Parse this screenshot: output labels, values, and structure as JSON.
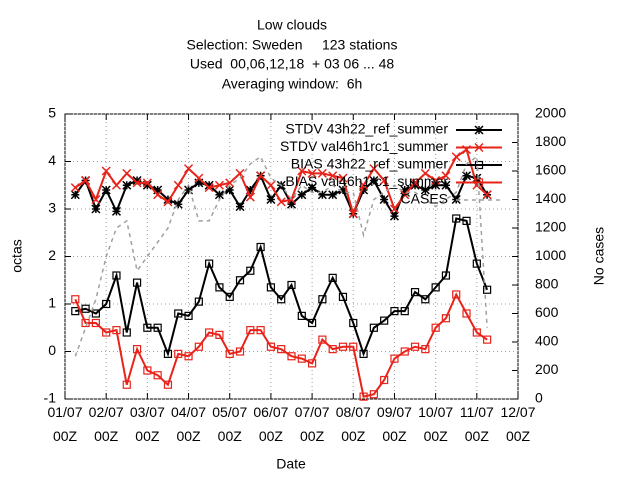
{
  "chart_data": {
    "type": "line",
    "title": [
      "Low clouds",
      "Selection: Sweden     123 stations",
      "Used  00,06,12,18  + 03 06 ... 48",
      "Averaging window:  6h"
    ],
    "xlabel": "Date",
    "ylabel": "octas",
    "y2label": "No cases",
    "x": [
      6,
      12,
      18,
      24,
      30,
      36,
      42,
      48,
      54,
      60,
      66,
      72,
      78,
      84,
      90,
      96,
      102,
      108,
      114,
      120,
      126,
      132,
      138,
      144,
      150,
      156,
      162,
      168,
      174,
      180,
      186,
      192,
      198,
      204,
      210,
      216,
      222,
      228,
      234,
      240,
      246
    ],
    "xlim": [
      0,
      264
    ],
    "xticks": [
      {
        "value": 0,
        "label": "01/07 00Z"
      },
      {
        "value": 24,
        "label": "02/07 00Z"
      },
      {
        "value": 48,
        "label": "03/07 00Z"
      },
      {
        "value": 72,
        "label": "04/07 00Z"
      },
      {
        "value": 96,
        "label": "05/07 00Z"
      },
      {
        "value": 120,
        "label": "06/07 00Z"
      },
      {
        "value": 144,
        "label": "07/07 00Z"
      },
      {
        "value": 168,
        "label": "08/07 00Z"
      },
      {
        "value": 192,
        "label": "09/07 00Z"
      },
      {
        "value": 216,
        "label": "10/07 00Z"
      },
      {
        "value": 240,
        "label": "11/07 00Z"
      },
      {
        "value": 264,
        "label": "12/07 00Z"
      }
    ],
    "ylim": [
      -1,
      5
    ],
    "yticks": [
      -1,
      0,
      1,
      2,
      3,
      4,
      5
    ],
    "y2lim": [
      0,
      2000
    ],
    "y2ticks": [
      0,
      200,
      400,
      600,
      800,
      1000,
      1200,
      1400,
      1600,
      1800,
      2000
    ],
    "grid": true,
    "legend": "top-right",
    "series": [
      {
        "name": "STDV 43h22_ref_summer",
        "color": "#000000",
        "marker": "star",
        "values": [
          3.3,
          3.6,
          3.0,
          3.4,
          2.95,
          3.5,
          3.6,
          3.5,
          3.4,
          3.2,
          3.1,
          3.4,
          3.55,
          3.5,
          3.3,
          3.4,
          3.05,
          3.4,
          3.7,
          3.2,
          3.5,
          3.1,
          3.3,
          3.45,
          3.3,
          3.3,
          3.4,
          2.9,
          3.4,
          3.6,
          3.2,
          2.85,
          3.4,
          3.5,
          3.4,
          3.5,
          3.5,
          3.2,
          3.7,
          3.65,
          3.3
        ]
      },
      {
        "name": "STDV val46h1rc1_summer",
        "color": "#e8231a",
        "marker": "cross",
        "values": [
          3.45,
          3.6,
          3.2,
          3.8,
          3.5,
          3.75,
          3.55,
          3.55,
          3.3,
          3.15,
          3.5,
          3.85,
          3.65,
          3.45,
          3.5,
          3.55,
          3.75,
          3.25,
          3.7,
          3.5,
          3.15,
          3.2,
          3.8,
          3.75,
          3.75,
          3.7,
          3.65,
          2.9,
          3.5,
          3.85,
          3.6,
          3.0,
          3.3,
          3.55,
          3.75,
          3.6,
          3.7,
          4.1,
          4.25,
          3.5,
          3.3
        ]
      },
      {
        "name": "BIAS 43h22_ref_summer",
        "color": "#000000",
        "marker": "square",
        "values": [
          0.85,
          0.9,
          0.8,
          1.0,
          1.6,
          0.4,
          1.45,
          0.5,
          0.5,
          -0.05,
          0.8,
          0.75,
          1.05,
          1.85,
          1.35,
          1.15,
          1.5,
          1.7,
          2.2,
          1.35,
          1.1,
          1.4,
          0.75,
          0.6,
          1.1,
          1.55,
          1.15,
          0.6,
          -0.05,
          0.5,
          0.65,
          0.85,
          0.85,
          1.25,
          1.1,
          1.35,
          1.6,
          2.8,
          2.75,
          1.85,
          1.3
        ]
      },
      {
        "name": "BIAS val46h1rc1_summer",
        "color": "#e8231a",
        "marker": "square",
        "values": [
          1.1,
          0.6,
          0.6,
          0.4,
          0.45,
          -0.7,
          0.05,
          -0.4,
          -0.5,
          -0.7,
          -0.05,
          -0.1,
          0.1,
          0.4,
          0.35,
          -0.05,
          0,
          0.45,
          0.45,
          0.1,
          0.05,
          -0.1,
          -0.15,
          -0.25,
          0.25,
          0.05,
          0.1,
          0.1,
          -0.95,
          -0.9,
          -0.6,
          -0.15,
          0,
          0.1,
          0.05,
          0.5,
          0.7,
          1.2,
          0.8,
          0.4,
          0.25
        ]
      },
      {
        "name": "CASES",
        "color": "#a0a0a0",
        "marker": "none",
        "axis": "y2",
        "dash": true,
        "values": [
          300,
          500,
          700,
          1000,
          1200,
          1250,
          900,
          1000,
          1100,
          1200,
          1400,
          1500,
          1250,
          1250,
          1400,
          1500,
          1550,
          1650,
          1700,
          1550,
          1500,
          1400,
          1500,
          1450,
          1450,
          1500,
          1450,
          1450,
          1150,
          1400,
          1450,
          1500,
          1450,
          1450,
          1400,
          1350,
          1400,
          1450,
          1650,
          1700,
          500
        ]
      }
    ]
  }
}
